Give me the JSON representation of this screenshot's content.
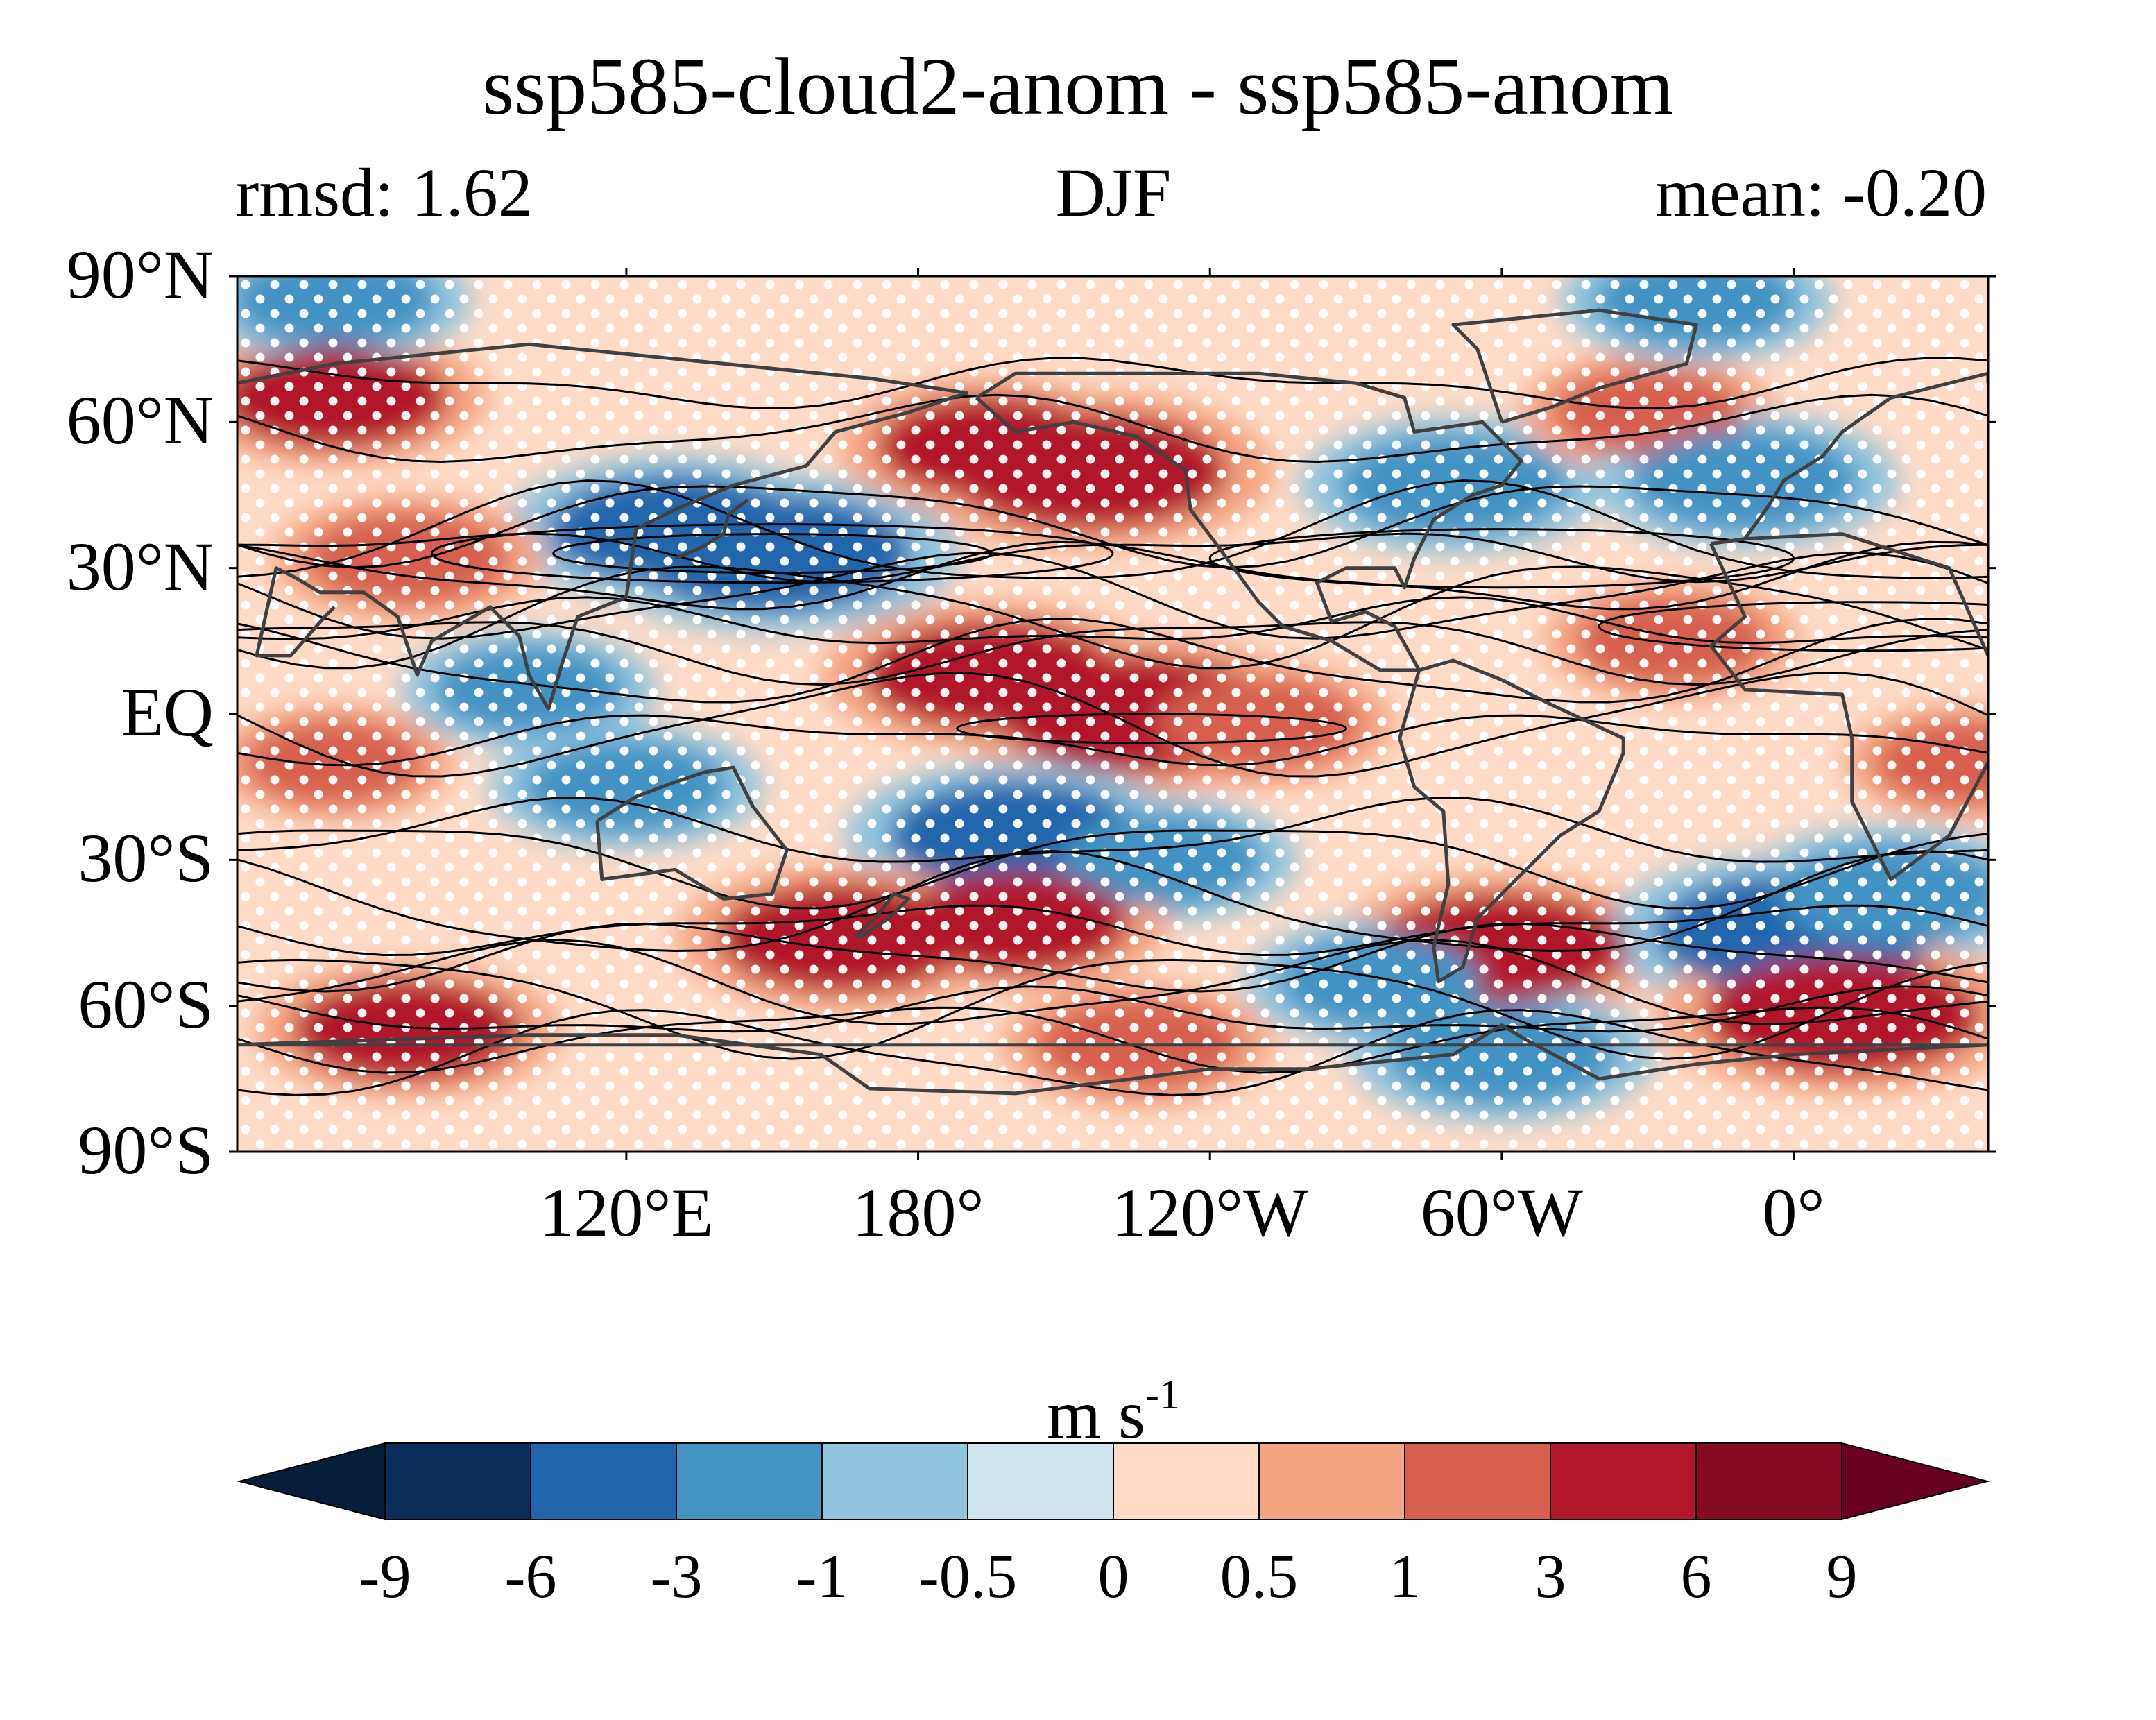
{
  "title": "ssp585-cloud2-anom - ssp585-anom",
  "subtitle": {
    "left": "rmsd: 1.62",
    "center": "DJF",
    "right": "mean: -0.20"
  },
  "axes": {
    "y_ticks": [
      "90°N",
      "60°N",
      "30°N",
      "EQ",
      "30°S",
      "60°S",
      "90°S"
    ],
    "x_ticks": [
      "120°E",
      "180°",
      "120°W",
      "60°W",
      "0°"
    ]
  },
  "colorbar": {
    "units_base": "m s",
    "units_exp": "-1",
    "ticks": [
      "-9",
      "-6",
      "-3",
      "-1",
      "-0.5",
      "0",
      "0.5",
      "1",
      "3",
      "6",
      "9"
    ],
    "colors": [
      "#0c2c5a",
      "#2166ac",
      "#4393c3",
      "#92c5de",
      "#d1e5f0",
      "#fddbc7",
      "#f4a582",
      "#d6604d",
      "#b2182b",
      "#870a24"
    ],
    "extend_low_color": "#071e3a",
    "extend_high_color": "#67001f"
  },
  "chart_data": {
    "type": "heatmap",
    "x_range_deg_east": [
      40,
      400
    ],
    "y_range_deg": [
      -90,
      90
    ],
    "levels": [
      -9,
      -6,
      -3,
      -1,
      -0.5,
      0,
      0.5,
      1,
      3,
      6,
      9
    ],
    "stippling": "white dots over significant regions",
    "overlay": "black climatology contour lines and coastlines",
    "anomaly_features": [
      {
        "lon": 150,
        "lat": 33,
        "value": -5
      },
      {
        "lon": 130,
        "lat": 38,
        "value": -4
      },
      {
        "lon": 75,
        "lat": 32,
        "value": 2
      },
      {
        "lon": 195,
        "lat": 55,
        "value": 3
      },
      {
        "lon": 215,
        "lat": 50,
        "value": 5
      },
      {
        "lon": 195,
        "lat": 8,
        "value": 4
      },
      {
        "lon": 225,
        "lat": 0,
        "value": 5
      },
      {
        "lon": 250,
        "lat": -2,
        "value": 2
      },
      {
        "lon": 290,
        "lat": 47,
        "value": -3
      },
      {
        "lon": 60,
        "lat": 65,
        "value": 3
      },
      {
        "lon": 330,
        "lat": 62,
        "value": 1.5
      },
      {
        "lon": 350,
        "lat": 48,
        "value": -3
      },
      {
        "lon": 335,
        "lat": 15,
        "value": 1.5
      },
      {
        "lon": 120,
        "lat": -15,
        "value": -2
      },
      {
        "lon": 200,
        "lat": -25,
        "value": -4
      },
      {
        "lon": 230,
        "lat": -30,
        "value": -2
      },
      {
        "lon": 200,
        "lat": -43,
        "value": 3
      },
      {
        "lon": 165,
        "lat": -46,
        "value": 4
      },
      {
        "lon": 300,
        "lat": -48,
        "value": 4
      },
      {
        "lon": 275,
        "lat": -55,
        "value": -2
      },
      {
        "lon": 360,
        "lat": -45,
        "value": -5
      },
      {
        "lon": 380,
        "lat": -37,
        "value": -3
      },
      {
        "lon": 75,
        "lat": -65,
        "value": 3
      },
      {
        "lon": 370,
        "lat": -62,
        "value": 5
      },
      {
        "lon": 300,
        "lat": -70,
        "value": -3
      },
      {
        "lon": 225,
        "lat": -68,
        "value": 2
      },
      {
        "lon": 60,
        "lat": 85,
        "value": -2
      },
      {
        "lon": 340,
        "lat": 85,
        "value": -2
      },
      {
        "lon": 100,
        "lat": 5,
        "value": -1.5
      },
      {
        "lon": 60,
        "lat": -10,
        "value": 1
      },
      {
        "lon": 395,
        "lat": -10,
        "value": 1
      }
    ]
  }
}
